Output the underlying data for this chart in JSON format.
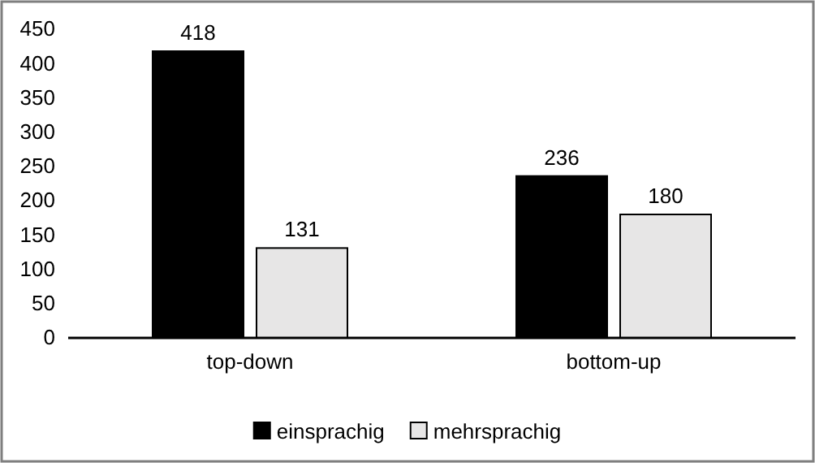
{
  "chart_data": {
    "type": "bar",
    "categories": [
      "top-down",
      "bottom-up"
    ],
    "series": [
      {
        "name": "einsprachig",
        "color": "#000000",
        "values": [
          418,
          236
        ]
      },
      {
        "name": "mehrsprachig",
        "color": "#e7e6e6",
        "values": [
          131,
          180
        ]
      }
    ],
    "ylim": [
      0,
      450
    ],
    "yticks": [
      0,
      50,
      100,
      150,
      200,
      250,
      300,
      350,
      400,
      450
    ],
    "grid": false,
    "legend": "bottom",
    "data_labels": true
  }
}
